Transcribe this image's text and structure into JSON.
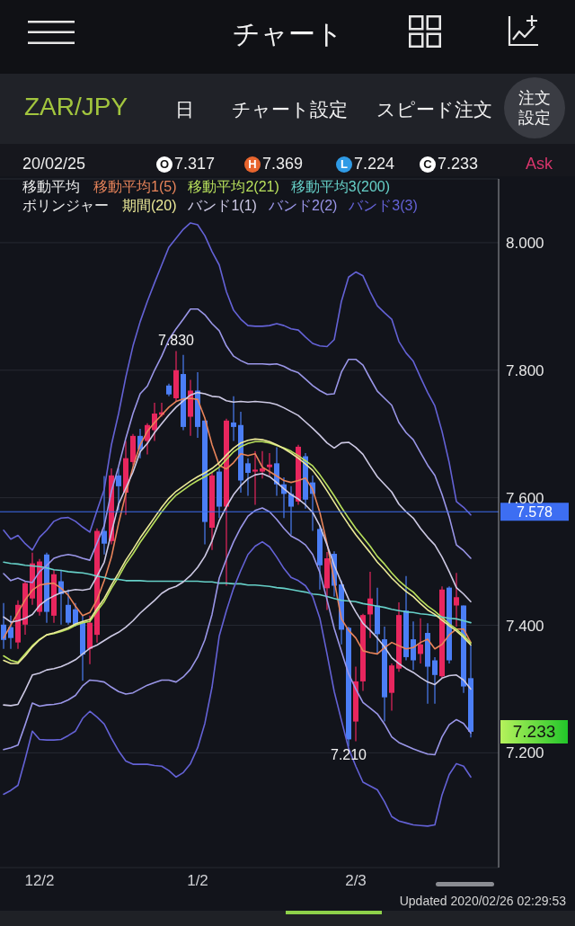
{
  "chart_data": {
    "type": "candlestick",
    "title": "チャート",
    "subtitle": "ZAR/JPY",
    "categories": [
      null,
      null,
      null,
      null,
      null,
      "12/2",
      null,
      null,
      null,
      null,
      null,
      null,
      null,
      null,
      null,
      null,
      null,
      null,
      null,
      null,
      null,
      null,
      null,
      null,
      null,
      null,
      null,
      "1/2",
      null,
      null,
      null,
      null,
      null,
      null,
      null,
      null,
      null,
      null,
      null,
      null,
      null,
      null,
      null,
      null,
      null,
      null,
      null,
      null,
      null,
      "2/3",
      null,
      null,
      null,
      null,
      null,
      null,
      null,
      null,
      null,
      null,
      null,
      null,
      null,
      null,
      null,
      null
    ],
    "ohlc": [
      [
        7.401,
        7.435,
        7.363,
        7.377
      ],
      [
        7.397,
        7.415,
        7.363,
        7.38
      ],
      [
        7.373,
        7.439,
        7.363,
        7.432
      ],
      [
        7.401,
        7.469,
        7.385,
        7.466
      ],
      [
        7.442,
        7.514,
        7.432,
        7.497
      ],
      [
        7.421,
        7.504,
        7.415,
        7.5
      ],
      [
        7.511,
        7.514,
        7.404,
        7.421
      ],
      [
        7.415,
        7.487,
        7.404,
        7.48
      ],
      [
        7.469,
        7.487,
        7.401,
        7.449
      ],
      [
        7.432,
        7.456,
        7.401,
        7.404
      ],
      [
        7.425,
        7.435,
        7.398,
        7.401
      ],
      [
        7.404,
        7.415,
        7.313,
        7.354
      ],
      [
        7.363,
        7.415,
        7.339,
        7.404
      ],
      [
        7.385,
        7.552,
        7.373,
        7.548
      ],
      [
        7.548,
        7.634,
        7.511,
        7.528
      ],
      [
        7.532,
        7.646,
        7.527,
        7.635
      ],
      [
        7.635,
        7.646,
        7.58,
        7.618
      ],
      [
        7.608,
        7.689,
        7.573,
        7.662
      ],
      [
        7.656,
        7.7,
        7.651,
        7.697
      ],
      [
        7.697,
        7.708,
        7.662,
        7.676
      ],
      [
        7.689,
        7.717,
        7.668,
        7.714
      ],
      [
        7.706,
        7.749,
        7.689,
        7.732
      ],
      [
        7.73,
        7.749,
        7.727,
        7.734
      ],
      [
        7.776,
        7.779,
        7.759,
        7.762
      ],
      [
        7.756,
        7.83,
        7.751,
        7.8
      ],
      [
        7.794,
        7.824,
        7.706,
        7.711
      ],
      [
        7.727,
        7.785,
        7.697,
        7.768
      ],
      [
        7.768,
        7.797,
        7.694,
        7.711
      ],
      [
        7.721,
        7.721,
        7.527,
        7.562
      ],
      [
        7.553,
        7.641,
        7.518,
        7.635
      ],
      [
        7.641,
        7.646,
        7.568,
        7.586
      ],
      [
        7.586,
        7.724,
        7.462,
        7.721
      ],
      [
        7.718,
        7.759,
        7.689,
        7.711
      ],
      [
        7.714,
        7.735,
        7.608,
        7.627
      ],
      [
        7.654,
        7.662,
        7.603,
        7.639
      ],
      [
        7.641,
        7.673,
        7.589,
        7.644
      ],
      [
        7.641,
        7.673,
        7.63,
        7.646
      ],
      [
        7.648,
        7.67,
        7.635,
        7.652
      ],
      [
        7.654,
        7.679,
        7.603,
        7.621
      ],
      [
        7.621,
        7.632,
        7.568,
        7.606
      ],
      [
        7.606,
        7.618,
        7.542,
        7.586
      ],
      [
        7.594,
        7.683,
        7.589,
        7.68
      ],
      [
        7.665,
        7.67,
        7.583,
        7.597
      ],
      [
        7.624,
        7.635,
        7.548,
        7.606
      ],
      [
        7.551,
        7.556,
        7.456,
        7.494
      ],
      [
        7.458,
        7.515,
        7.424,
        7.505
      ],
      [
        7.512,
        7.516,
        7.445,
        7.462
      ],
      [
        7.464,
        7.47,
        7.37,
        7.393
      ],
      [
        7.396,
        7.398,
        7.21,
        7.221
      ],
      [
        7.249,
        7.335,
        7.218,
        7.312
      ],
      [
        7.312,
        7.418,
        7.297,
        7.416
      ],
      [
        7.417,
        7.484,
        7.38,
        7.442
      ],
      [
        7.431,
        7.459,
        7.355,
        7.386
      ],
      [
        7.378,
        7.398,
        7.249,
        7.287
      ],
      [
        7.294,
        7.34,
        7.266,
        7.337
      ],
      [
        7.332,
        7.436,
        7.327,
        7.416
      ],
      [
        7.423,
        7.477,
        7.345,
        7.35
      ],
      [
        7.378,
        7.406,
        7.33,
        7.345
      ],
      [
        7.355,
        7.411,
        7.34,
        7.37
      ],
      [
        7.388,
        7.403,
        7.277,
        7.335
      ],
      [
        7.345,
        7.35,
        7.277,
        7.322
      ],
      [
        7.32,
        7.461,
        7.317,
        7.456
      ],
      [
        7.459,
        7.461,
        7.34,
        7.345
      ],
      [
        7.431,
        7.482,
        7.398,
        7.444
      ],
      [
        7.431,
        7.431,
        7.294,
        7.304
      ],
      [
        7.317,
        7.369,
        7.224,
        7.233
      ]
    ],
    "colors": [
      "#4b7ef6",
      "#4b7ef6",
      "#e8265e",
      "#e8265e",
      "#e8265e",
      "#e8265e",
      "#4b7ef6",
      "#e8265e",
      "#4b7ef6",
      "#4b7ef6",
      "#4b7ef6",
      "#4b7ef6",
      "#e8265e",
      "#e8265e",
      "#4b7ef6",
      "#e8265e",
      "#4b7ef6",
      "#e8265e",
      "#e8265e",
      "#4b7ef6",
      "#e8265e",
      "#e8265e",
      "#e8265e",
      "#4b7ef6",
      "#e8265e",
      "#4b7ef6",
      "#e8265e",
      "#4b7ef6",
      "#4b7ef6",
      "#e8265e",
      "#4b7ef6",
      "#e8265e",
      "#4b7ef6",
      "#4b7ef6",
      "#4b7ef6",
      "#e8265e",
      "#e8265e",
      "#e8265e",
      "#4b7ef6",
      "#4b7ef6",
      "#4b7ef6",
      "#e8265e",
      "#4b7ef6",
      "#4b7ef6",
      "#4b7ef6",
      "#e8265e",
      "#4b7ef6",
      "#4b7ef6",
      "#4b7ef6",
      "#e8265e",
      "#e8265e",
      "#e8265e",
      "#4b7ef6",
      "#4b7ef6",
      "#e8265e",
      "#e8265e",
      "#4b7ef6",
      "#4b7ef6",
      "#e8265e",
      "#4b7ef6",
      "#4b7ef6",
      "#e8265e",
      "#4b7ef6",
      "#e8265e",
      "#4b7ef6",
      "#4b7ef6"
    ],
    "series": [
      {
        "type": "line",
        "name": "移動平均1(5)",
        "color": "#e8845a",
        "values": [
          7.38,
          7.4,
          7.42,
          7.44,
          7.455,
          7.463,
          7.465,
          7.466,
          7.458,
          7.447,
          7.43,
          7.415,
          7.42,
          7.44,
          7.47,
          7.507,
          7.56,
          7.606,
          7.648,
          7.683,
          7.704,
          7.718,
          7.73,
          7.742,
          7.751,
          7.755,
          7.756,
          7.754,
          7.725,
          7.683,
          7.651,
          7.645,
          7.655,
          7.669,
          7.666,
          7.669,
          7.648,
          7.641,
          7.634,
          7.627,
          7.624,
          7.627,
          7.631,
          7.613,
          7.577,
          7.528,
          7.47,
          7.41,
          7.392,
          7.38,
          7.36,
          7.357,
          7.355,
          7.365,
          7.373,
          7.368,
          7.363,
          7.365,
          7.373,
          7.378,
          7.363,
          7.37,
          7.385,
          7.394,
          7.394,
          7.373
        ]
      },
      {
        "type": "line",
        "name": "移動平均2(21)",
        "color": "#b8e05c",
        "values": [
          7.352,
          7.345,
          7.342,
          7.355,
          7.368,
          7.378,
          7.385,
          7.387,
          7.39,
          7.394,
          7.4,
          7.404,
          7.406,
          7.422,
          7.437,
          7.458,
          7.476,
          7.496,
          7.512,
          7.53,
          7.546,
          7.562,
          7.578,
          7.592,
          7.604,
          7.612,
          7.62,
          7.627,
          7.633,
          7.64,
          7.648,
          7.66,
          7.672,
          7.68,
          7.685,
          7.688,
          7.688,
          7.686,
          7.682,
          7.678,
          7.673,
          7.666,
          7.658,
          7.65,
          7.636,
          7.62,
          7.603,
          7.585,
          7.568,
          7.552,
          7.538,
          7.524,
          7.508,
          7.496,
          7.482,
          7.47,
          7.46,
          7.452,
          7.44,
          7.43,
          7.422,
          7.412,
          7.402,
          7.394,
          7.384,
          7.372
        ]
      },
      {
        "type": "line",
        "name": "移動平均3(200)",
        "color": "#66d0c8",
        "values": [
          7.499,
          7.497,
          7.496,
          7.494,
          7.493,
          7.492,
          7.49,
          7.487,
          7.486,
          7.484,
          7.483,
          7.482,
          7.48,
          7.477,
          7.475,
          7.472,
          7.472,
          7.47,
          7.47,
          7.47,
          7.469,
          7.469,
          7.469,
          7.469,
          7.469,
          7.469,
          7.469,
          7.469,
          7.468,
          7.468,
          7.466,
          7.466,
          7.465,
          7.465,
          7.463,
          7.463,
          7.462,
          7.461,
          7.459,
          7.458,
          7.456,
          7.454,
          7.452,
          7.449,
          7.448,
          7.445,
          7.442,
          7.439,
          7.438,
          7.437,
          7.434,
          7.432,
          7.43,
          7.428,
          7.425,
          7.423,
          7.421,
          7.42,
          7.418,
          7.417,
          7.415,
          7.413,
          7.411,
          7.41,
          7.407,
          7.404
        ]
      },
      {
        "type": "line",
        "name": "期間(20)",
        "color": "#ecea98",
        "values": [
          7.345,
          7.34,
          7.34,
          7.352,
          7.366,
          7.377,
          7.385,
          7.388,
          7.392,
          7.396,
          7.402,
          7.406,
          7.409,
          7.426,
          7.442,
          7.463,
          7.482,
          7.502,
          7.519,
          7.537,
          7.553,
          7.569,
          7.585,
          7.599,
          7.61,
          7.618,
          7.626,
          7.633,
          7.639,
          7.646,
          7.655,
          7.667,
          7.678,
          7.686,
          7.69,
          7.692,
          7.691,
          7.688,
          7.683,
          7.677,
          7.67,
          7.662,
          7.653,
          7.643,
          7.628,
          7.611,
          7.593,
          7.575,
          7.558,
          7.542,
          7.528,
          7.514,
          7.499,
          7.487,
          7.474,
          7.463,
          7.453,
          7.445,
          7.434,
          7.424,
          7.417,
          7.408,
          7.399,
          7.391,
          7.381,
          7.369
        ]
      },
      {
        "type": "line",
        "name": "バンド1(1)",
        "color": "#cdc9e4",
        "values": [
          7.413,
          7.405,
          7.407,
          7.411,
          7.417,
          7.431,
          7.44,
          7.446,
          7.451,
          7.454,
          7.456,
          7.455,
          7.457,
          7.477,
          7.499,
          7.545,
          7.59,
          7.615,
          7.64,
          7.672,
          7.685,
          7.702,
          7.716,
          7.73,
          7.742,
          7.752,
          7.761,
          7.765,
          7.763,
          7.759,
          7.758,
          7.752,
          7.75,
          7.751,
          7.75,
          7.751,
          7.75,
          7.749,
          7.746,
          7.741,
          7.735,
          7.729,
          7.719,
          7.709,
          7.698,
          7.686,
          7.678,
          7.686,
          7.687,
          7.679,
          7.668,
          7.65,
          7.633,
          7.621,
          7.609,
          7.59,
          7.578,
          7.568,
          7.552,
          7.538,
          7.526,
          7.507,
          7.484,
          7.459,
          7.449,
          7.437
        ]
      },
      {
        "type": "line",
        "color": "#cdc9e4",
        "values": [
          7.275,
          7.274,
          7.276,
          7.298,
          7.322,
          7.325,
          7.33,
          7.332,
          7.335,
          7.34,
          7.346,
          7.355,
          7.364,
          7.369,
          7.376,
          7.383,
          7.389,
          7.397,
          7.407,
          7.419,
          7.429,
          7.439,
          7.45,
          7.457,
          7.461,
          7.468,
          7.478,
          7.491,
          7.508,
          7.532,
          7.564,
          7.586,
          7.605,
          7.619,
          7.63,
          7.636,
          7.638,
          7.633,
          7.624,
          7.614,
          7.605,
          7.598,
          7.589,
          7.577,
          7.556,
          7.526,
          7.494,
          7.467,
          7.441,
          7.421,
          7.403,
          7.392,
          7.38,
          7.366,
          7.349,
          7.34,
          7.332,
          7.326,
          7.318,
          7.311,
          7.307,
          7.317,
          7.321,
          7.322,
          7.314,
          7.3
        ]
      },
      {
        "type": "line",
        "name": "バンド2(2)",
        "color": "#9a96e8",
        "values": [
          7.481,
          7.47,
          7.474,
          7.469,
          7.467,
          7.484,
          7.494,
          7.505,
          7.509,
          7.511,
          7.509,
          7.505,
          7.502,
          7.529,
          7.556,
          7.61,
          7.649,
          7.693,
          7.732,
          7.763,
          7.775,
          7.8,
          7.822,
          7.848,
          7.865,
          7.88,
          7.896,
          7.896,
          7.887,
          7.873,
          7.862,
          7.838,
          7.822,
          7.815,
          7.81,
          7.81,
          7.81,
          7.809,
          7.81,
          7.806,
          7.8,
          7.796,
          7.786,
          7.776,
          7.768,
          7.762,
          7.763,
          7.797,
          7.817,
          7.817,
          7.808,
          7.787,
          7.767,
          7.756,
          7.745,
          7.718,
          7.702,
          7.691,
          7.671,
          7.651,
          7.635,
          7.605,
          7.57,
          7.526,
          7.517,
          7.505
        ]
      },
      {
        "type": "line",
        "color": "#9a96e8",
        "values": [
          7.205,
          7.208,
          7.212,
          7.244,
          7.278,
          7.273,
          7.275,
          7.276,
          7.278,
          7.283,
          7.29,
          7.305,
          7.314,
          7.313,
          7.311,
          7.303,
          7.296,
          7.292,
          7.294,
          7.3,
          7.306,
          7.31,
          7.314,
          7.314,
          7.311,
          7.319,
          7.331,
          7.35,
          7.377,
          7.417,
          7.474,
          7.504,
          7.531,
          7.553,
          7.571,
          7.58,
          7.584,
          7.578,
          7.566,
          7.552,
          7.54,
          7.534,
          7.526,
          7.511,
          7.483,
          7.44,
          7.395,
          7.359,
          7.324,
          7.3,
          7.279,
          7.27,
          7.261,
          7.245,
          7.225,
          7.216,
          7.211,
          7.206,
          7.202,
          7.198,
          7.197,
          7.225,
          7.244,
          7.252,
          7.246,
          7.231
        ]
      },
      {
        "type": "line",
        "name": "バンド3(3)",
        "color": "#6462d6",
        "values": [
          7.549,
          7.535,
          7.541,
          7.528,
          7.518,
          7.538,
          7.549,
          7.563,
          7.568,
          7.569,
          7.563,
          7.554,
          7.546,
          7.58,
          7.613,
          7.683,
          7.732,
          7.789,
          7.838,
          7.876,
          7.908,
          7.937,
          7.965,
          7.993,
          8.007,
          8.021,
          8.031,
          8.028,
          8.011,
          7.986,
          7.965,
          7.923,
          7.894,
          7.88,
          7.87,
          7.869,
          7.869,
          7.87,
          7.873,
          7.87,
          7.865,
          7.863,
          7.852,
          7.842,
          7.838,
          7.837,
          7.848,
          7.908,
          7.946,
          7.954,
          7.948,
          7.923,
          7.901,
          7.89,
          7.88,
          7.845,
          7.827,
          7.814,
          7.789,
          7.765,
          7.744,
          7.704,
          7.655,
          7.594,
          7.585,
          7.573
        ]
      },
      {
        "type": "line",
        "color": "#6462d6",
        "values": [
          7.135,
          7.141,
          7.149,
          7.19,
          7.234,
          7.221,
          7.22,
          7.22,
          7.221,
          7.227,
          7.234,
          7.254,
          7.265,
          7.256,
          7.245,
          7.223,
          7.203,
          7.187,
          7.182,
          7.182,
          7.182,
          7.18,
          7.179,
          7.172,
          7.162,
          7.169,
          7.183,
          7.208,
          7.246,
          7.303,
          7.383,
          7.423,
          7.458,
          7.486,
          7.511,
          7.524,
          7.531,
          7.523,
          7.507,
          7.489,
          7.475,
          7.47,
          7.462,
          7.445,
          7.411,
          7.355,
          7.296,
          7.251,
          7.207,
          7.179,
          7.154,
          7.148,
          7.142,
          7.123,
          7.1,
          7.093,
          7.09,
          7.087,
          7.086,
          7.085,
          7.087,
          7.134,
          7.166,
          7.183,
          7.179,
          7.162
        ]
      }
    ],
    "ylim": [
      7.02,
      8.1
    ],
    "yticks": [
      {
        "value": 7.2,
        "label": "7.200"
      },
      {
        "value": 7.4,
        "label": "7.400"
      },
      {
        "value": 7.6,
        "label": "7.600"
      },
      {
        "value": 7.8,
        "label": "7.800"
      },
      {
        "value": 8.0,
        "label": "8.000"
      }
    ],
    "grid": "y",
    "legend": "top",
    "ref_lines": [
      {
        "axis": "y",
        "value": 7.578,
        "label": "7.578",
        "color": "#3d6ef2"
      }
    ],
    "annotations": [
      "日",
      "チャート設定",
      "スピード注文",
      "注文設定",
      "20/02/25",
      "O",
      "7.317",
      "H",
      "7.369",
      "L",
      "7.224",
      "C",
      "7.233",
      "Ask",
      "移動平均",
      "ボリンジャー",
      {
        "text": "7.830",
        "y": 7.83
      },
      {
        "text": "7.210",
        "y": 7.21
      },
      "7.233",
      "Updated 2020/02/26 02:29:53"
    ]
  }
}
